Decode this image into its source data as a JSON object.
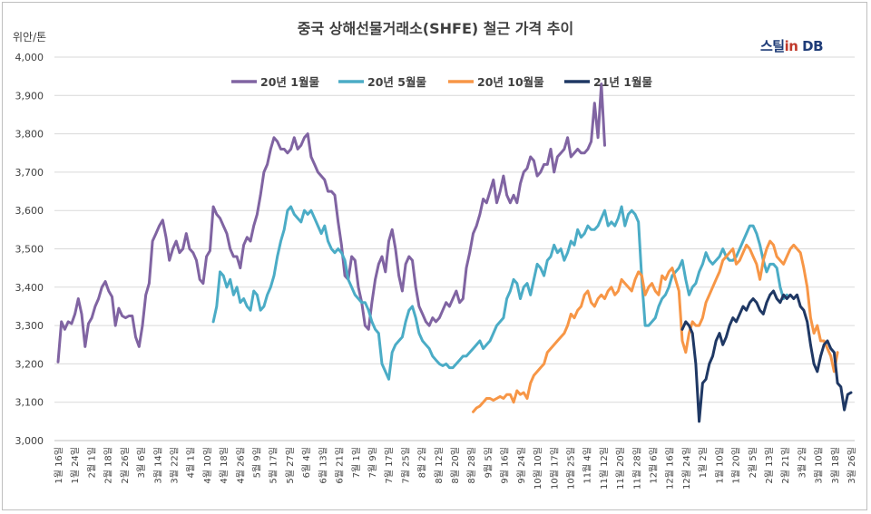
{
  "chart_data": {
    "type": "line",
    "title": "중국 상해선물거래소(SHFE) 철근 가격 추이",
    "ylabel": "위안/톤",
    "ylim": [
      3000,
      4000
    ],
    "yticks": [
      "3,000",
      "3,100",
      "3,200",
      "3,300",
      "3,400",
      "3,500",
      "3,600",
      "3,700",
      "3,800",
      "3,900",
      "4,000"
    ],
    "grid": true,
    "legend_position": "top",
    "x_categories": [
      "1월 16일",
      "1월 24일",
      "2월 1일",
      "2월 18일",
      "2월 26일",
      "3월 6일",
      "3월 14일",
      "3월 22일",
      "4월 1일",
      "4월 10일",
      "4월 18일",
      "4월 26일",
      "5월 9일",
      "5월 17일",
      "5월 27일",
      "6월 4일",
      "6월 13일",
      "6월 21일",
      "7월 1일",
      "7월 9일",
      "7월 17일",
      "7월 25일",
      "8월 2일",
      "8월 12일",
      "8월 20일",
      "8월 28일",
      "9월 5일",
      "9월 16일",
      "9월 24일",
      "10월 10일",
      "10월 17일",
      "10월 25일",
      "11월 4일",
      "11월 12일",
      "11월 20일",
      "11월 28일",
      "12월 6일",
      "12월 16일",
      "12월 24일",
      "1월 2일",
      "1월 10일",
      "1월 20일",
      "2월 5일",
      "2월 13일",
      "2월 21일",
      "3월 2일",
      "3월 10일",
      "3월 18일",
      "3월 26일"
    ],
    "series": [
      {
        "name": "20년 1월물",
        "color": "#8064a2",
        "start": 0,
        "values": [
          3205,
          3310,
          3290,
          3310,
          3305,
          3330,
          3370,
          3330,
          3245,
          3305,
          3320,
          3350,
          3370,
          3400,
          3415,
          3390,
          3375,
          3300,
          3345,
          3325,
          3320,
          3325,
          3325,
          3270,
          3245,
          3300,
          3380,
          3410,
          3520,
          3540,
          3560,
          3575,
          3530,
          3470,
          3500,
          3520,
          3490,
          3500,
          3540,
          3500,
          3490,
          3470,
          3420,
          3410,
          3480,
          3495,
          3610,
          3590,
          3580,
          3560,
          3540,
          3500,
          3480,
          3480,
          3450,
          3510,
          3530,
          3520,
          3560,
          3590,
          3640,
          3700,
          3720,
          3760,
          3790,
          3780,
          3760,
          3760,
          3750,
          3760,
          3790,
          3760,
          3770,
          3790,
          3800,
          3740,
          3720,
          3700,
          3690,
          3680,
          3650,
          3650,
          3640,
          3570,
          3510,
          3430,
          3420,
          3480,
          3470,
          3400,
          3360,
          3300,
          3290,
          3360,
          3420,
          3460,
          3480,
          3440,
          3520,
          3550,
          3500,
          3430,
          3390,
          3460,
          3480,
          3470,
          3400,
          3350,
          3330,
          3310,
          3300,
          3320,
          3310,
          3320,
          3340,
          3360,
          3350,
          3370,
          3390,
          3360,
          3370,
          3450,
          3490,
          3540,
          3560,
          3590,
          3630,
          3620,
          3650,
          3680,
          3620,
          3650,
          3690,
          3640,
          3620,
          3640,
          3620,
          3670,
          3700,
          3710,
          3740,
          3730,
          3690,
          3700,
          3720,
          3720,
          3760,
          3700,
          3740,
          3750,
          3760,
          3790,
          3740,
          3750,
          3760,
          3750,
          3750,
          3760,
          3780,
          3880,
          3790,
          3930,
          3770
        ]
      },
      {
        "name": "20년 5월물",
        "color": "#4bacc6",
        "start": 46,
        "values": [
          3310,
          3350,
          3440,
          3430,
          3400,
          3420,
          3380,
          3400,
          3360,
          3370,
          3350,
          3340,
          3390,
          3380,
          3340,
          3350,
          3380,
          3400,
          3430,
          3480,
          3520,
          3550,
          3600,
          3610,
          3590,
          3580,
          3570,
          3600,
          3590,
          3600,
          3580,
          3560,
          3540,
          3560,
          3520,
          3500,
          3490,
          3500,
          3490,
          3470,
          3420,
          3400,
          3380,
          3370,
          3360,
          3360,
          3340,
          3310,
          3290,
          3280,
          3200,
          3180,
          3160,
          3230,
          3250,
          3260,
          3270,
          3310,
          3340,
          3350,
          3320,
          3280,
          3260,
          3250,
          3240,
          3220,
          3210,
          3200,
          3195,
          3200,
          3190,
          3190,
          3200,
          3210,
          3220,
          3220,
          3230,
          3240,
          3250,
          3260,
          3240,
          3250,
          3260,
          3280,
          3300,
          3310,
          3320,
          3370,
          3390,
          3420,
          3410,
          3370,
          3400,
          3410,
          3380,
          3420,
          3460,
          3450,
          3430,
          3470,
          3480,
          3510,
          3490,
          3500,
          3470,
          3490,
          3520,
          3510,
          3550,
          3530,
          3540,
          3560,
          3550,
          3550,
          3560,
          3580,
          3600,
          3560,
          3570,
          3560,
          3580,
          3610,
          3560,
          3590,
          3600,
          3590,
          3570,
          3420,
          3300,
          3300,
          3310,
          3320,
          3350,
          3370,
          3380,
          3400,
          3430,
          3440,
          3450,
          3470,
          3420,
          3380,
          3400,
          3410,
          3440,
          3460,
          3490,
          3470,
          3460,
          3470,
          3480,
          3500,
          3480,
          3470,
          3470,
          3480,
          3500,
          3520,
          3540,
          3560,
          3560,
          3540,
          3510,
          3470,
          3440,
          3460,
          3460,
          3450,
          3400,
          3370,
          3380
        ]
      },
      {
        "name": "20년 10월물",
        "color": "#f79646",
        "start": 123,
        "values": [
          3075,
          3085,
          3090,
          3100,
          3110,
          3110,
          3105,
          3110,
          3115,
          3110,
          3120,
          3120,
          3100,
          3130,
          3120,
          3125,
          3110,
          3150,
          3170,
          3180,
          3190,
          3200,
          3230,
          3240,
          3250,
          3260,
          3270,
          3280,
          3300,
          3330,
          3320,
          3340,
          3350,
          3380,
          3390,
          3360,
          3350,
          3370,
          3380,
          3370,
          3390,
          3400,
          3380,
          3390,
          3420,
          3410,
          3400,
          3390,
          3420,
          3440,
          3430,
          3380,
          3400,
          3410,
          3390,
          3380,
          3430,
          3420,
          3440,
          3450,
          3420,
          3390,
          3260,
          3230,
          3280,
          3310,
          3300,
          3300,
          3320,
          3360,
          3380,
          3400,
          3420,
          3440,
          3470,
          3480,
          3490,
          3500,
          3460,
          3470,
          3490,
          3510,
          3500,
          3480,
          3460,
          3420,
          3470,
          3500,
          3520,
          3510,
          3480,
          3470,
          3460,
          3480,
          3500,
          3510,
          3500,
          3490,
          3450,
          3400,
          3320,
          3280,
          3300,
          3260,
          3260,
          3240,
          3220,
          3180,
          3230
        ]
      },
      {
        "name": "21년 1월물",
        "color": "#1f3864",
        "start": 185,
        "values": [
          3290,
          3310,
          3300,
          3280,
          3200,
          3050,
          3150,
          3160,
          3200,
          3220,
          3260,
          3280,
          3250,
          3270,
          3300,
          3320,
          3310,
          3330,
          3350,
          3340,
          3360,
          3370,
          3360,
          3340,
          3330,
          3360,
          3380,
          3390,
          3370,
          3360,
          3380,
          3370,
          3380,
          3370,
          3380,
          3350,
          3340,
          3310,
          3250,
          3200,
          3180,
          3220,
          3250,
          3260,
          3240,
          3230,
          3150,
          3140,
          3080,
          3120,
          3125
        ]
      }
    ]
  },
  "brand": {
    "part1": "스틸",
    "part2": "in",
    "part3": " DB"
  }
}
